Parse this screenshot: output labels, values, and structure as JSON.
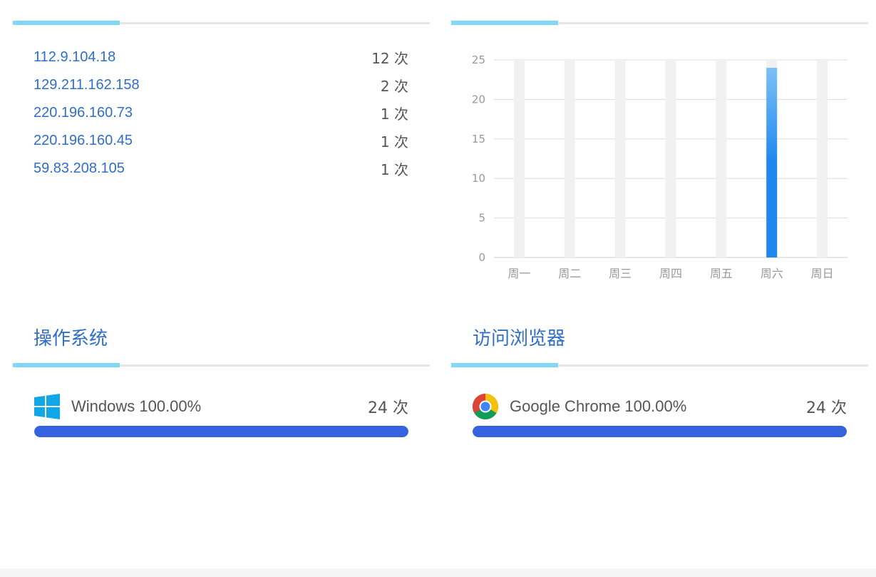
{
  "ip_panel": {
    "rows": [
      {
        "ip": "112.9.104.18",
        "count": "12 次"
      },
      {
        "ip": "129.211.162.158",
        "count": "2 次"
      },
      {
        "ip": "220.196.160.73",
        "count": "1 次"
      },
      {
        "ip": "220.196.160.45",
        "count": "1 次"
      },
      {
        "ip": "59.83.208.105",
        "count": "1 次"
      }
    ]
  },
  "weekly_chart": {
    "chart_data": {
      "type": "bar",
      "categories": [
        "周一",
        "周二",
        "周三",
        "周四",
        "周五",
        "周六",
        "周日"
      ],
      "values": [
        0,
        0,
        0,
        0,
        0,
        24,
        0
      ],
      "ylim": [
        0,
        25
      ],
      "yticks": [
        "0",
        "5",
        "10",
        "15",
        "20",
        "25"
      ],
      "grid": true,
      "colors": {
        "bar_top": "#7cc0f7",
        "bar": "#1e88ee",
        "background_bar": "#f1f1f1"
      }
    }
  },
  "os_panel": {
    "title": "操作系统",
    "item": {
      "icon": "windows-icon",
      "label": "Windows 100.00%",
      "count": "24 次",
      "percent": 100
    }
  },
  "browser_panel": {
    "title": "访问浏览器",
    "item": {
      "icon": "chrome-icon",
      "label": "Google Chrome 100.00%",
      "count": "24 次",
      "percent": 100
    }
  },
  "colors": {
    "accent": "#2f6fc7",
    "progress": "#3562df",
    "divider_accent": "#7dd9f5"
  }
}
